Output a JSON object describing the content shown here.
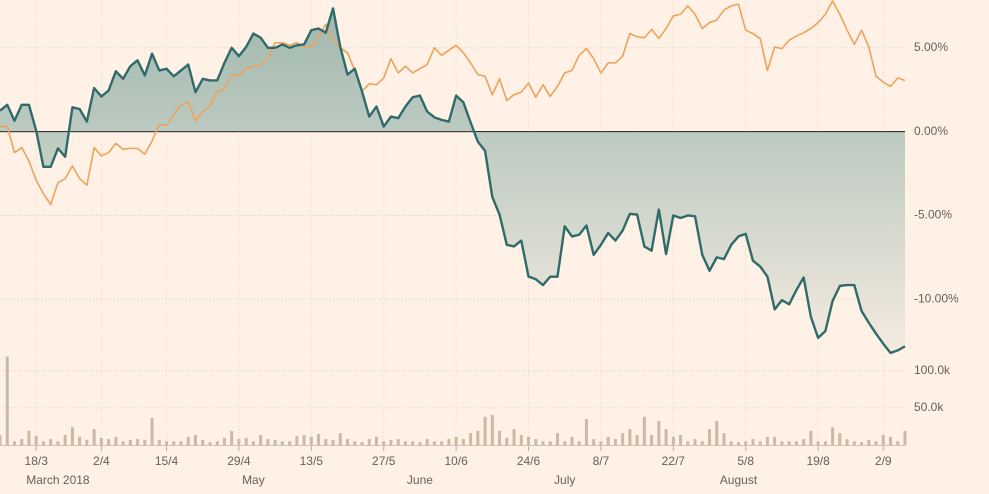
{
  "chart_data": {
    "type": "line",
    "categories": [
      null,
      null,
      null,
      null,
      null,
      "18/3",
      null,
      null,
      null,
      null,
      null,
      null,
      null,
      null,
      "2/4",
      null,
      null,
      null,
      null,
      null,
      null,
      null,
      null,
      "15/4",
      null,
      null,
      null,
      null,
      null,
      null,
      null,
      null,
      null,
      "29/4",
      null,
      null,
      null,
      null,
      null,
      null,
      null,
      null,
      null,
      "13/5",
      null,
      null,
      null,
      null,
      null,
      null,
      null,
      null,
      null,
      "27/5",
      null,
      null,
      null,
      null,
      null,
      null,
      null,
      null,
      null,
      "10/6",
      null,
      null,
      null,
      null,
      null,
      null,
      null,
      null,
      null,
      "24/6",
      null,
      null,
      null,
      null,
      null,
      null,
      null,
      null,
      null,
      "8/7",
      null,
      null,
      null,
      null,
      null,
      null,
      null,
      null,
      null,
      "22/7",
      null,
      null,
      null,
      null,
      null,
      null,
      null,
      null,
      null,
      "5/8",
      null,
      null,
      null,
      null,
      null,
      null,
      null,
      null,
      null,
      "19/8",
      null,
      null,
      null,
      null,
      null,
      null,
      null,
      null,
      "2/9",
      null,
      null,
      null
    ],
    "series": [
      {
        "color": "#2f6b6b",
        "fill": true,
        "values": [
          1.25,
          1.6,
          0.65,
          1.6,
          1.6,
          0.05,
          -2.1,
          -2.1,
          -1.0,
          -1.5,
          1.45,
          1.35,
          0.6,
          2.6,
          2.1,
          2.45,
          3.6,
          3.15,
          3.9,
          4.25,
          3.35,
          4.65,
          3.65,
          3.75,
          3.3,
          3.65,
          4.0,
          2.35,
          3.15,
          3.05,
          3.05,
          4.1,
          5.0,
          4.5,
          5.05,
          5.85,
          5.6,
          5.0,
          5.0,
          5.2,
          5.0,
          5.15,
          5.2,
          6.05,
          6.15,
          5.9,
          7.35,
          5.05,
          3.4,
          3.75,
          2.4,
          0.9,
          1.5,
          0.3,
          0.9,
          0.8,
          1.5,
          2.05,
          2.15,
          1.2,
          0.85,
          0.7,
          0.6,
          2.15,
          1.75,
          0.55,
          -0.6,
          -1.15,
          -3.9,
          -4.95,
          -6.75,
          -6.85,
          -6.5,
          -8.65,
          -8.8,
          -9.15,
          -8.65,
          -8.65,
          -5.65,
          -6.25,
          -6.15,
          -5.6,
          -7.35,
          -6.75,
          -6.05,
          -6.5,
          -5.9,
          -4.9,
          -4.95,
          -6.85,
          -7.1,
          -4.65,
          -7.3,
          -5.0,
          -5.15,
          -5.0,
          -5.05,
          -7.35,
          -8.3,
          -7.5,
          -7.6,
          -6.75,
          -6.25,
          -6.1,
          -7.7,
          -8.05,
          -8.65,
          -10.6,
          -10.05,
          -10.3,
          -9.45,
          -8.7,
          -11.05,
          -12.3,
          -11.9,
          -10.1,
          -9.2,
          -9.15,
          -9.15,
          -10.7,
          -11.4,
          -12.05,
          -12.65,
          -13.2,
          -13.05,
          -12.8
        ]
      },
      {
        "color": "#eea25a",
        "values": [
          0.3,
          0.3,
          -1.25,
          -0.95,
          -1.75,
          -2.9,
          -3.7,
          -4.35,
          -3.05,
          -2.8,
          -2.05,
          -2.8,
          -3.2,
          -0.95,
          -1.45,
          -1.25,
          -0.7,
          -1.05,
          -1.0,
          -1.0,
          -1.35,
          -0.55,
          0.4,
          0.4,
          1.0,
          1.6,
          1.75,
          0.65,
          1.2,
          1.5,
          2.4,
          2.55,
          3.4,
          3.35,
          3.75,
          3.9,
          4.0,
          4.35,
          5.3,
          5.3,
          5.15,
          5.3,
          5.05,
          5.05,
          5.65,
          6.4,
          5.45,
          5.0,
          4.7,
          3.65,
          2.4,
          2.85,
          2.8,
          3.2,
          4.35,
          3.5,
          3.9,
          3.5,
          3.75,
          4.0,
          5.0,
          4.55,
          4.85,
          5.15,
          4.7,
          4.1,
          3.4,
          3.3,
          2.2,
          3.15,
          1.85,
          2.2,
          2.35,
          2.9,
          2.05,
          2.8,
          2.1,
          2.7,
          3.5,
          3.65,
          4.55,
          4.95,
          4.35,
          3.5,
          4.1,
          4.1,
          4.5,
          5.85,
          5.65,
          5.6,
          6.1,
          5.55,
          6.15,
          6.9,
          7.0,
          7.5,
          7.0,
          6.15,
          6.5,
          6.65,
          7.25,
          7.5,
          7.6,
          6.05,
          5.85,
          5.55,
          3.65,
          5.05,
          4.95,
          5.45,
          5.7,
          5.9,
          6.15,
          6.5,
          7.0,
          7.8,
          7.0,
          6.05,
          5.2,
          6.05,
          5.05,
          3.3,
          2.95,
          2.7,
          3.2,
          3.05
        ]
      }
    ],
    "ylim": [
      -13.8,
      7.85
    ],
    "yticks": [
      {
        "value": 5,
        "label": "5.00%"
      },
      {
        "value": 0,
        "label": "0.00%"
      },
      {
        "value": -5,
        "label": "-5.00%"
      },
      {
        "value": -10,
        "label": "-10.00%"
      }
    ],
    "grid": true,
    "month_ticks": [
      {
        "value": 8,
        "label": "March 2018"
      },
      {
        "value": 35,
        "label": "May"
      },
      {
        "value": 58,
        "label": "June"
      },
      {
        "value": 78,
        "label": "July"
      },
      {
        "value": 102,
        "label": "August"
      }
    ],
    "volume": {
      "type": "bar",
      "color": "#c9b9a7",
      "values": [
        13500,
        119000,
        5000,
        8000,
        19000,
        12000,
        5000,
        8000,
        5000,
        13500,
        24000,
        11000,
        7000,
        21500,
        9500,
        8000,
        11000,
        5000,
        7000,
        8000,
        7000,
        36500,
        7000,
        5000,
        5000,
        5000,
        11000,
        13500,
        7000,
        4000,
        5000,
        9500,
        19000,
        8000,
        9500,
        5000,
        13500,
        8000,
        7000,
        5000,
        5000,
        12000,
        13500,
        11000,
        15000,
        8000,
        7000,
        16000,
        8000,
        5000,
        4000,
        8000,
        11000,
        5000,
        7000,
        8000,
        5000,
        5000,
        4000,
        8000,
        5000,
        5000,
        8000,
        11000,
        8000,
        16000,
        19000,
        38000,
        40500,
        19000,
        9500,
        21500,
        13500,
        11000,
        8000,
        5000,
        5000,
        16000,
        5000,
        11000,
        5000,
        35000,
        8000,
        5000,
        11000,
        8000,
        16000,
        21500,
        13500,
        38000,
        13500,
        32500,
        21500,
        11000,
        13500,
        5000,
        8000,
        5000,
        21500,
        32500,
        16000,
        5000,
        4000,
        5000,
        8000,
        5000,
        11000,
        11000,
        5000,
        5000,
        5000,
        8000,
        19000,
        5000,
        5000,
        24000,
        16000,
        8000,
        5000,
        4000,
        7000,
        5000,
        13500,
        11000,
        5000,
        19000
      ],
      "ylim": [
        0,
        120000
      ],
      "yticks": [
        {
          "value": 100000,
          "label": "100.0k"
        },
        {
          "value": 50000,
          "label": "50.0k"
        }
      ]
    }
  }
}
